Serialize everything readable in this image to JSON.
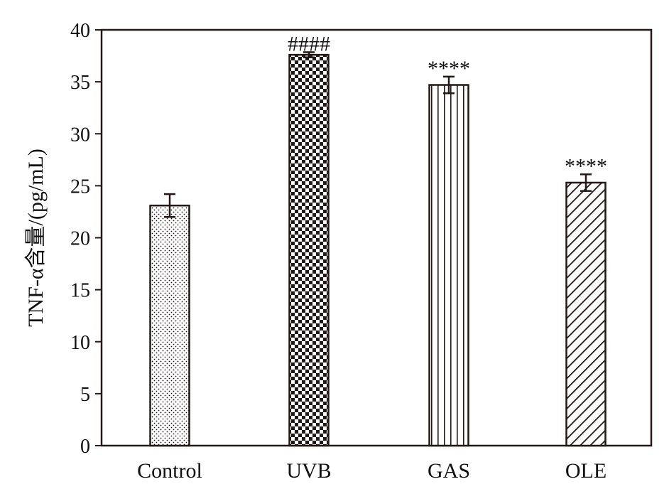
{
  "chart_data": {
    "type": "bar",
    "categories": [
      "Control",
      "UVB",
      "GAS",
      "OLE"
    ],
    "values": [
      23.1,
      37.6,
      34.7,
      25.3
    ],
    "errors": [
      1.1,
      0.25,
      0.8,
      0.8
    ],
    "annotations": [
      "",
      "####",
      "****",
      "****"
    ],
    "patterns": [
      "dots",
      "checker",
      "vertical",
      "diagonal"
    ],
    "ylabel": "TNF-α含量/(pg/mL)",
    "xlabel": "",
    "ylim": [
      0,
      40
    ],
    "yticks": [
      0,
      5,
      10,
      15,
      20,
      25,
      30,
      35,
      40
    ],
    "grid": false,
    "colors": {
      "axis": "#231815",
      "bar_fill": "#ffffff",
      "pattern": "#231815"
    }
  }
}
